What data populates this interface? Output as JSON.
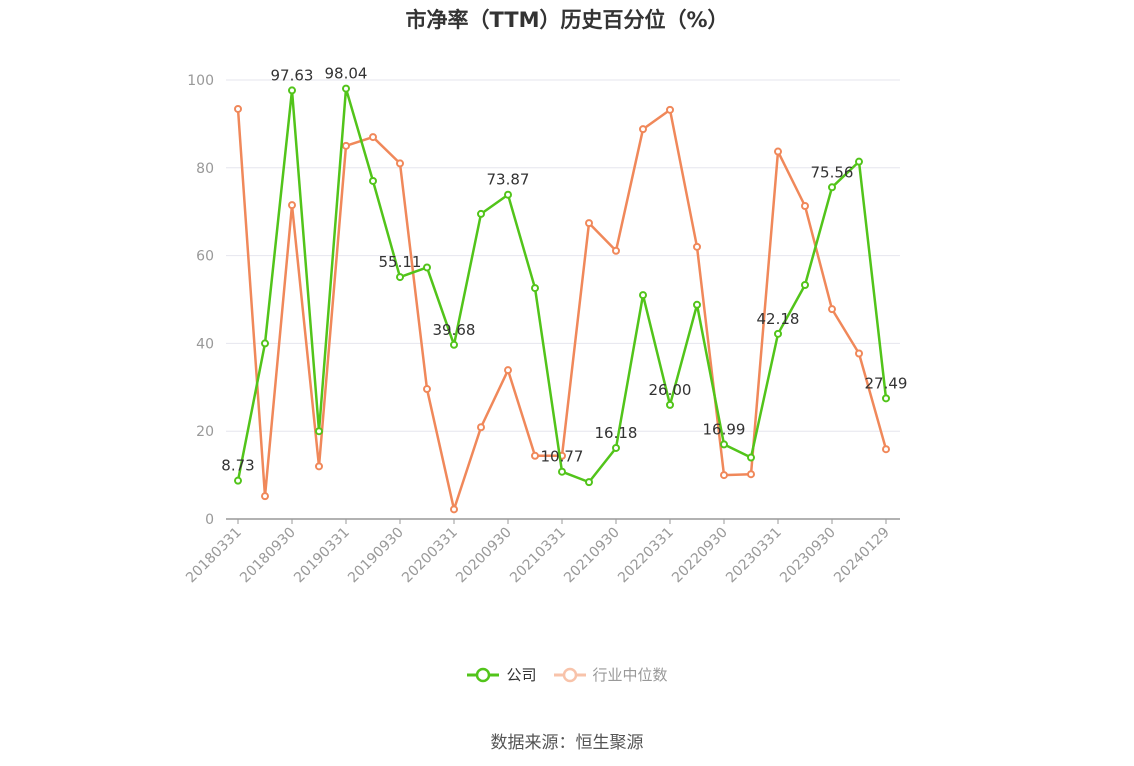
{
  "chart_data": {
    "type": "line",
    "title": "市净率（TTM）历史百分位（%）",
    "source": "数据来源：恒生聚源",
    "ylim": [
      0,
      100
    ],
    "yticks": [
      0,
      20,
      40,
      60,
      80,
      100
    ],
    "grid": true,
    "legend_position": "bottom",
    "x_tick_labels": [
      "20180331",
      "20180930",
      "20190331",
      "20190930",
      "20200331",
      "20200930",
      "20210331",
      "20210930",
      "20220331",
      "20220930",
      "20230331",
      "20230930",
      "20240129"
    ],
    "x_tick_indices": [
      0,
      2,
      4,
      6,
      8,
      10,
      12,
      14,
      16,
      18,
      20,
      22,
      24
    ],
    "x": [
      "20180331",
      "20180630",
      "20180930",
      "20181231",
      "20190331",
      "20190630",
      "20190930",
      "20191231",
      "20200331",
      "20200630",
      "20200930",
      "20201231",
      "20210331",
      "20210630",
      "20210930",
      "20211231",
      "20220331",
      "20220630",
      "20220930",
      "20221231",
      "20230331",
      "20230630",
      "20230930",
      "20231231",
      "20240129"
    ],
    "series": [
      {
        "name": "公司",
        "color": "#52c41a",
        "values": [
          8.73,
          40,
          97.63,
          20,
          98.04,
          77,
          55.11,
          57.3,
          39.68,
          69.5,
          73.87,
          52.6,
          10.77,
          8.4,
          16.18,
          51,
          26.0,
          48.8,
          16.99,
          14,
          42.18,
          53.3,
          75.56,
          81.4,
          27.49
        ],
        "labels": [
          "8.73",
          null,
          "97.63",
          null,
          "98.04",
          null,
          "55.11",
          null,
          "39.68",
          null,
          "73.87",
          null,
          "10.77",
          null,
          "16.18",
          null,
          "26.00",
          null,
          "16.99",
          null,
          "42.18",
          null,
          "75.56",
          null,
          "27.49"
        ]
      },
      {
        "name": "行业中位数",
        "color": "#f0885a",
        "values": [
          93.4,
          5.2,
          71.5,
          12,
          85,
          87,
          81,
          29.6,
          2.2,
          20.9,
          33.9,
          14.4,
          14.4,
          67.4,
          61.1,
          88.8,
          93.2,
          62,
          10,
          10.2,
          83.7,
          71.3,
          47.8,
          37.7,
          15.9
        ]
      }
    ]
  }
}
